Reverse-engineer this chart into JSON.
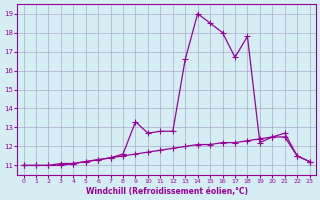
{
  "xlabel": "Windchill (Refroidissement éolien,°C)",
  "bg_color": "#d4eef4",
  "grid_color": "#aaaacc",
  "line_color": "#990099",
  "x_values": [
    0,
    1,
    2,
    3,
    4,
    5,
    6,
    7,
    8,
    9,
    10,
    11,
    12,
    13,
    14,
    15,
    16,
    17,
    18,
    19,
    20,
    21,
    22,
    23
  ],
  "line1_y": [
    11.0,
    11.0,
    11.0,
    11.0,
    11.1,
    11.2,
    11.3,
    11.4,
    11.6,
    13.3,
    12.7,
    12.8,
    12.8,
    16.6,
    19.0,
    18.5,
    18.0,
    16.7,
    17.8,
    12.2,
    12.5,
    12.7,
    11.5,
    11.2
  ],
  "line2_y": [
    11.0,
    11.0,
    11.0,
    11.1,
    11.1,
    11.2,
    11.3,
    11.4,
    11.5,
    11.6,
    11.7,
    11.8,
    11.9,
    12.0,
    12.1,
    12.1,
    12.2,
    12.2,
    12.3,
    12.4,
    12.5,
    12.5,
    11.5,
    11.2
  ],
  "ylim": [
    10.5,
    19.5
  ],
  "xlim": [
    -0.5,
    23.5
  ],
  "yticks": [
    11,
    12,
    13,
    14,
    15,
    16,
    17,
    18,
    19
  ],
  "xticks": [
    0,
    1,
    2,
    3,
    4,
    5,
    6,
    7,
    8,
    9,
    10,
    11,
    12,
    13,
    14,
    15,
    16,
    17,
    18,
    19,
    20,
    21,
    22,
    23
  ]
}
